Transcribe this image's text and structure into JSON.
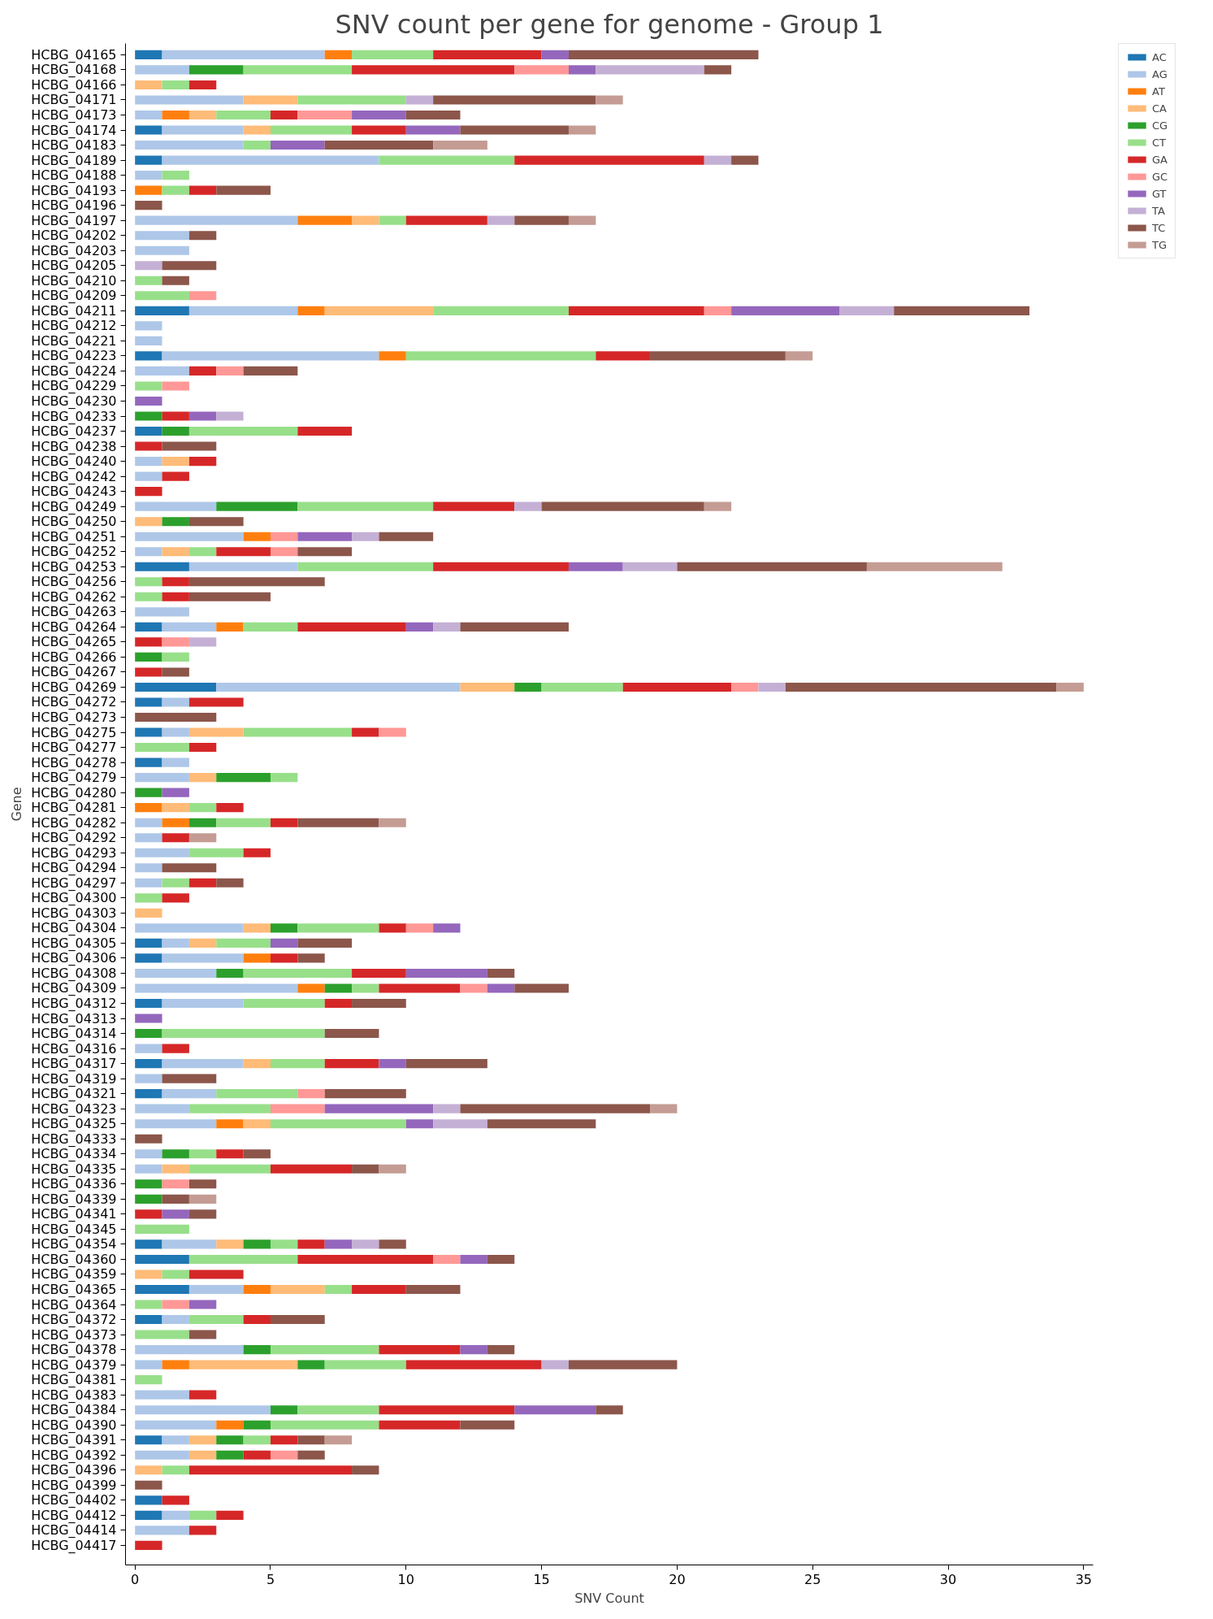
{
  "chart_data": {
    "type": "bar",
    "orientation": "horizontal",
    "stacked": true,
    "title": "SNV count per gene for genome - Group 1",
    "xlabel": "SNV Count",
    "ylabel": "Gene",
    "categories": [
      "HCBG_04165",
      "HCBG_04168",
      "HCBG_04166",
      "HCBG_04171",
      "HCBG_04173",
      "HCBG_04174",
      "HCBG_04183",
      "HCBG_04189",
      "HCBG_04188",
      "HCBG_04193",
      "HCBG_04196",
      "HCBG_04197",
      "HCBG_04202",
      "HCBG_04203",
      "HCBG_04205",
      "HCBG_04210",
      "HCBG_04209",
      "HCBG_04211",
      "HCBG_04212",
      "HCBG_04221",
      "HCBG_04223",
      "HCBG_04224",
      "HCBG_04229",
      "HCBG_04230",
      "HCBG_04233",
      "HCBG_04237",
      "HCBG_04238",
      "HCBG_04240",
      "HCBG_04242",
      "HCBG_04243",
      "HCBG_04249",
      "HCBG_04250",
      "HCBG_04251",
      "HCBG_04252",
      "HCBG_04253",
      "HCBG_04256",
      "HCBG_04262",
      "HCBG_04263",
      "HCBG_04264",
      "HCBG_04265",
      "HCBG_04266",
      "HCBG_04267",
      "HCBG_04269",
      "HCBG_04272",
      "HCBG_04273",
      "HCBG_04275",
      "HCBG_04277",
      "HCBG_04278",
      "HCBG_04279",
      "HCBG_04280",
      "HCBG_04281",
      "HCBG_04282",
      "HCBG_04292",
      "HCBG_04293",
      "HCBG_04294",
      "HCBG_04297",
      "HCBG_04300",
      "HCBG_04303",
      "HCBG_04304",
      "HCBG_04305",
      "HCBG_04306",
      "HCBG_04308",
      "HCBG_04309",
      "HCBG_04312",
      "HCBG_04313",
      "HCBG_04314",
      "HCBG_04316",
      "HCBG_04317",
      "HCBG_04319",
      "HCBG_04321",
      "HCBG_04323",
      "HCBG_04325",
      "HCBG_04333",
      "HCBG_04334",
      "HCBG_04335",
      "HCBG_04336",
      "HCBG_04339",
      "HCBG_04341",
      "HCBG_04345",
      "HCBG_04354",
      "HCBG_04360",
      "HCBG_04359",
      "HCBG_04365",
      "HCBG_04364",
      "HCBG_04372",
      "HCBG_04373",
      "HCBG_04378",
      "HCBG_04379",
      "HCBG_04381",
      "HCBG_04383",
      "HCBG_04384",
      "HCBG_04390",
      "HCBG_04391",
      "HCBG_04392",
      "HCBG_04396",
      "HCBG_04399",
      "HCBG_04402",
      "HCBG_04412",
      "HCBG_04414",
      "HCBG_04417"
    ],
    "series": [
      {
        "name": "AC",
        "color": "#1f77b4",
        "values": [
          1,
          0,
          0,
          0,
          0,
          1,
          0,
          1,
          0,
          0,
          0,
          0,
          0,
          0,
          0,
          0,
          0,
          2,
          0,
          0,
          1,
          0,
          0,
          0,
          0,
          1,
          0,
          0,
          0,
          0,
          0,
          0,
          0,
          0,
          2,
          0,
          0,
          0,
          1,
          0,
          0,
          0,
          3,
          1,
          0,
          1,
          0,
          1,
          0,
          0,
          0,
          0,
          0,
          0,
          0,
          0,
          0,
          0,
          0,
          1,
          1,
          0,
          0,
          1,
          0,
          0,
          0,
          1,
          0,
          1,
          0,
          0,
          0,
          0,
          0,
          0,
          0,
          0,
          0,
          1,
          2,
          0,
          2,
          0,
          1,
          0,
          0,
          0,
          0,
          0,
          0,
          0,
          1,
          0,
          0,
          0,
          1,
          1,
          0,
          0
        ]
      },
      {
        "name": "AG",
        "color": "#aec7e8",
        "values": [
          6,
          2,
          0,
          4,
          1,
          3,
          4,
          8,
          1,
          0,
          0,
          6,
          2,
          2,
          0,
          0,
          0,
          4,
          1,
          1,
          8,
          2,
          0,
          0,
          0,
          0,
          0,
          1,
          1,
          0,
          3,
          0,
          4,
          1,
          4,
          0,
          0,
          2,
          2,
          0,
          0,
          0,
          9,
          1,
          0,
          1,
          0,
          1,
          2,
          0,
          0,
          1,
          1,
          2,
          1,
          1,
          0,
          0,
          4,
          1,
          3,
          3,
          6,
          3,
          0,
          0,
          1,
          3,
          1,
          2,
          2,
          3,
          0,
          1,
          1,
          0,
          0,
          0,
          0,
          2,
          0,
          0,
          2,
          0,
          1,
          0,
          4,
          1,
          0,
          2,
          5,
          3,
          1,
          2,
          0,
          0,
          0,
          1,
          2,
          0
        ]
      },
      {
        "name": "AT",
        "color": "#ff7f0e",
        "values": [
          1,
          0,
          0,
          0,
          1,
          0,
          0,
          0,
          0,
          1,
          0,
          2,
          0,
          0,
          0,
          0,
          0,
          1,
          0,
          0,
          1,
          0,
          0,
          0,
          0,
          0,
          0,
          0,
          0,
          0,
          0,
          0,
          1,
          0,
          0,
          0,
          0,
          0,
          1,
          0,
          0,
          0,
          0,
          0,
          0,
          0,
          0,
          0,
          0,
          0,
          1,
          1,
          0,
          0,
          0,
          0,
          0,
          0,
          0,
          0,
          1,
          0,
          1,
          0,
          0,
          0,
          0,
          0,
          0,
          0,
          0,
          1,
          0,
          0,
          0,
          0,
          0,
          0,
          0,
          0,
          0,
          0,
          1,
          0,
          0,
          0,
          0,
          1,
          0,
          0,
          0,
          1,
          0,
          0,
          0,
          0,
          0,
          0,
          0,
          0
        ]
      },
      {
        "name": "CA",
        "color": "#ffbb78",
        "values": [
          0,
          0,
          1,
          2,
          1,
          1,
          0,
          0,
          0,
          0,
          0,
          1,
          0,
          0,
          0,
          0,
          0,
          4,
          0,
          0,
          0,
          0,
          0,
          0,
          0,
          0,
          0,
          1,
          0,
          0,
          0,
          1,
          0,
          1,
          0,
          0,
          0,
          0,
          0,
          0,
          0,
          0,
          2,
          0,
          0,
          2,
          0,
          0,
          1,
          0,
          1,
          0,
          0,
          0,
          0,
          0,
          0,
          1,
          1,
          1,
          0,
          0,
          0,
          0,
          0,
          0,
          0,
          1,
          0,
          0,
          0,
          1,
          0,
          0,
          1,
          0,
          0,
          0,
          0,
          1,
          0,
          1,
          2,
          0,
          0,
          0,
          0,
          4,
          0,
          0,
          0,
          0,
          1,
          1,
          1,
          0,
          0,
          0,
          0,
          0
        ]
      },
      {
        "name": "CG",
        "color": "#2ca02c",
        "values": [
          0,
          2,
          0,
          0,
          0,
          0,
          0,
          0,
          0,
          0,
          0,
          0,
          0,
          0,
          0,
          0,
          0,
          0,
          0,
          0,
          0,
          0,
          0,
          0,
          1,
          1,
          0,
          0,
          0,
          0,
          3,
          1,
          0,
          0,
          0,
          0,
          0,
          0,
          0,
          0,
          1,
          0,
          1,
          0,
          0,
          0,
          0,
          0,
          2,
          1,
          0,
          1,
          0,
          0,
          0,
          0,
          0,
          0,
          1,
          0,
          0,
          1,
          1,
          0,
          0,
          1,
          0,
          0,
          0,
          0,
          0,
          0,
          0,
          1,
          0,
          1,
          1,
          0,
          0,
          1,
          0,
          0,
          0,
          0,
          0,
          0,
          1,
          1,
          0,
          0,
          1,
          1,
          1,
          1,
          0,
          0,
          0,
          0,
          0,
          0
        ]
      },
      {
        "name": "CT",
        "color": "#98df8a",
        "values": [
          3,
          4,
          1,
          4,
          2,
          3,
          1,
          5,
          1,
          1,
          0,
          1,
          0,
          0,
          0,
          1,
          2,
          5,
          0,
          0,
          7,
          0,
          1,
          0,
          0,
          4,
          0,
          0,
          0,
          0,
          5,
          0,
          0,
          1,
          5,
          1,
          1,
          0,
          2,
          0,
          1,
          0,
          3,
          0,
          0,
          4,
          2,
          0,
          1,
          0,
          1,
          2,
          0,
          2,
          0,
          1,
          1,
          0,
          3,
          2,
          0,
          4,
          1,
          3,
          0,
          6,
          0,
          2,
          0,
          3,
          3,
          5,
          0,
          1,
          3,
          0,
          0,
          0,
          2,
          1,
          4,
          1,
          1,
          1,
          2,
          2,
          4,
          3,
          1,
          0,
          3,
          4,
          1,
          0,
          1,
          0,
          0,
          1,
          0,
          0
        ]
      },
      {
        "name": "GA",
        "color": "#d62728",
        "values": [
          4,
          6,
          1,
          0,
          1,
          2,
          0,
          7,
          0,
          1,
          0,
          3,
          0,
          0,
          0,
          0,
          0,
          5,
          0,
          0,
          2,
          1,
          0,
          0,
          1,
          2,
          1,
          1,
          1,
          1,
          3,
          0,
          0,
          2,
          5,
          1,
          1,
          0,
          4,
          1,
          0,
          1,
          4,
          2,
          0,
          1,
          1,
          0,
          0,
          0,
          1,
          1,
          1,
          1,
          0,
          1,
          1,
          0,
          1,
          0,
          1,
          2,
          3,
          1,
          0,
          0,
          1,
          2,
          0,
          0,
          0,
          0,
          0,
          1,
          3,
          0,
          0,
          1,
          0,
          1,
          5,
          2,
          2,
          0,
          1,
          0,
          3,
          5,
          0,
          1,
          5,
          3,
          1,
          1,
          6,
          0,
          1,
          1,
          1,
          1
        ]
      },
      {
        "name": "GC",
        "color": "#ff9896",
        "values": [
          0,
          2,
          0,
          0,
          2,
          0,
          0,
          0,
          0,
          0,
          0,
          0,
          0,
          0,
          0,
          0,
          1,
          1,
          0,
          0,
          0,
          1,
          1,
          0,
          0,
          0,
          0,
          0,
          0,
          0,
          0,
          0,
          1,
          1,
          0,
          0,
          0,
          0,
          0,
          1,
          0,
          0,
          1,
          0,
          0,
          1,
          0,
          0,
          0,
          0,
          0,
          0,
          0,
          0,
          0,
          0,
          0,
          0,
          1,
          0,
          0,
          0,
          1,
          0,
          0,
          0,
          0,
          0,
          0,
          1,
          2,
          0,
          0,
          0,
          0,
          1,
          0,
          0,
          0,
          0,
          1,
          0,
          0,
          1,
          0,
          0,
          0,
          0,
          0,
          0,
          0,
          0,
          0,
          1,
          0,
          0,
          0,
          0,
          0,
          0
        ]
      },
      {
        "name": "GT",
        "color": "#9467bd",
        "values": [
          1,
          1,
          0,
          0,
          2,
          2,
          2,
          0,
          0,
          0,
          0,
          0,
          0,
          0,
          0,
          0,
          0,
          4,
          0,
          0,
          0,
          0,
          0,
          1,
          1,
          0,
          0,
          0,
          0,
          0,
          0,
          0,
          2,
          0,
          2,
          0,
          0,
          0,
          1,
          0,
          0,
          0,
          0,
          0,
          0,
          0,
          0,
          0,
          0,
          1,
          0,
          0,
          0,
          0,
          0,
          0,
          0,
          0,
          1,
          1,
          0,
          3,
          1,
          0,
          1,
          0,
          0,
          1,
          0,
          0,
          4,
          1,
          0,
          0,
          0,
          0,
          0,
          1,
          0,
          1,
          1,
          0,
          0,
          1,
          0,
          0,
          1,
          0,
          0,
          0,
          3,
          0,
          0,
          0,
          0,
          0,
          0,
          0,
          0,
          0
        ]
      },
      {
        "name": "TA",
        "color": "#c5b0d5",
        "values": [
          0,
          4,
          0,
          1,
          0,
          0,
          0,
          1,
          0,
          0,
          0,
          1,
          0,
          0,
          1,
          0,
          0,
          2,
          0,
          0,
          0,
          0,
          0,
          0,
          1,
          0,
          0,
          0,
          0,
          0,
          1,
          0,
          1,
          0,
          2,
          0,
          0,
          0,
          1,
          1,
          0,
          0,
          1,
          0,
          0,
          0,
          0,
          0,
          0,
          0,
          0,
          0,
          0,
          0,
          0,
          0,
          0,
          0,
          0,
          0,
          0,
          0,
          0,
          0,
          0,
          0,
          0,
          0,
          0,
          0,
          1,
          2,
          0,
          0,
          0,
          0,
          0,
          0,
          0,
          1,
          0,
          0,
          0,
          0,
          0,
          0,
          0,
          1,
          0,
          0,
          0,
          0,
          0,
          0,
          0,
          0,
          0,
          0,
          0,
          0
        ]
      },
      {
        "name": "TC",
        "color": "#8c564b",
        "values": [
          7,
          1,
          0,
          6,
          2,
          4,
          4,
          1,
          0,
          2,
          1,
          2,
          1,
          0,
          2,
          1,
          0,
          5,
          0,
          0,
          5,
          2,
          0,
          0,
          0,
          0,
          2,
          0,
          0,
          0,
          6,
          2,
          2,
          2,
          7,
          5,
          3,
          0,
          4,
          0,
          0,
          1,
          10,
          0,
          3,
          0,
          0,
          0,
          0,
          0,
          0,
          3,
          0,
          0,
          2,
          1,
          0,
          0,
          0,
          2,
          1,
          1,
          2,
          2,
          0,
          2,
          0,
          3,
          2,
          3,
          7,
          4,
          1,
          1,
          1,
          1,
          1,
          1,
          0,
          1,
          1,
          0,
          2,
          0,
          2,
          1,
          1,
          4,
          0,
          0,
          1,
          2,
          1,
          1,
          1,
          1,
          0,
          0,
          0,
          0
        ]
      },
      {
        "name": "TG",
        "color": "#c49c94",
        "values": [
          0,
          0,
          0,
          1,
          0,
          1,
          2,
          0,
          0,
          0,
          0,
          1,
          0,
          0,
          0,
          0,
          0,
          0,
          0,
          0,
          1,
          0,
          0,
          0,
          0,
          0,
          0,
          0,
          0,
          0,
          1,
          0,
          0,
          0,
          5,
          0,
          0,
          0,
          0,
          0,
          0,
          0,
          1,
          0,
          0,
          0,
          0,
          0,
          0,
          0,
          0,
          1,
          1,
          0,
          0,
          0,
          0,
          0,
          0,
          0,
          0,
          0,
          0,
          0,
          0,
          0,
          0,
          0,
          0,
          0,
          1,
          0,
          0,
          0,
          1,
          0,
          1,
          0,
          0,
          0,
          0,
          0,
          0,
          0,
          0,
          0,
          0,
          0,
          0,
          0,
          0,
          0,
          1,
          0,
          0,
          0,
          0,
          0,
          0,
          0
        ]
      }
    ],
    "xlim": [
      -0.35,
      35.35
    ],
    "xticks": [
      0,
      5,
      10,
      15,
      20,
      25,
      30,
      35
    ],
    "legend": "top right",
    "grid": false
  }
}
